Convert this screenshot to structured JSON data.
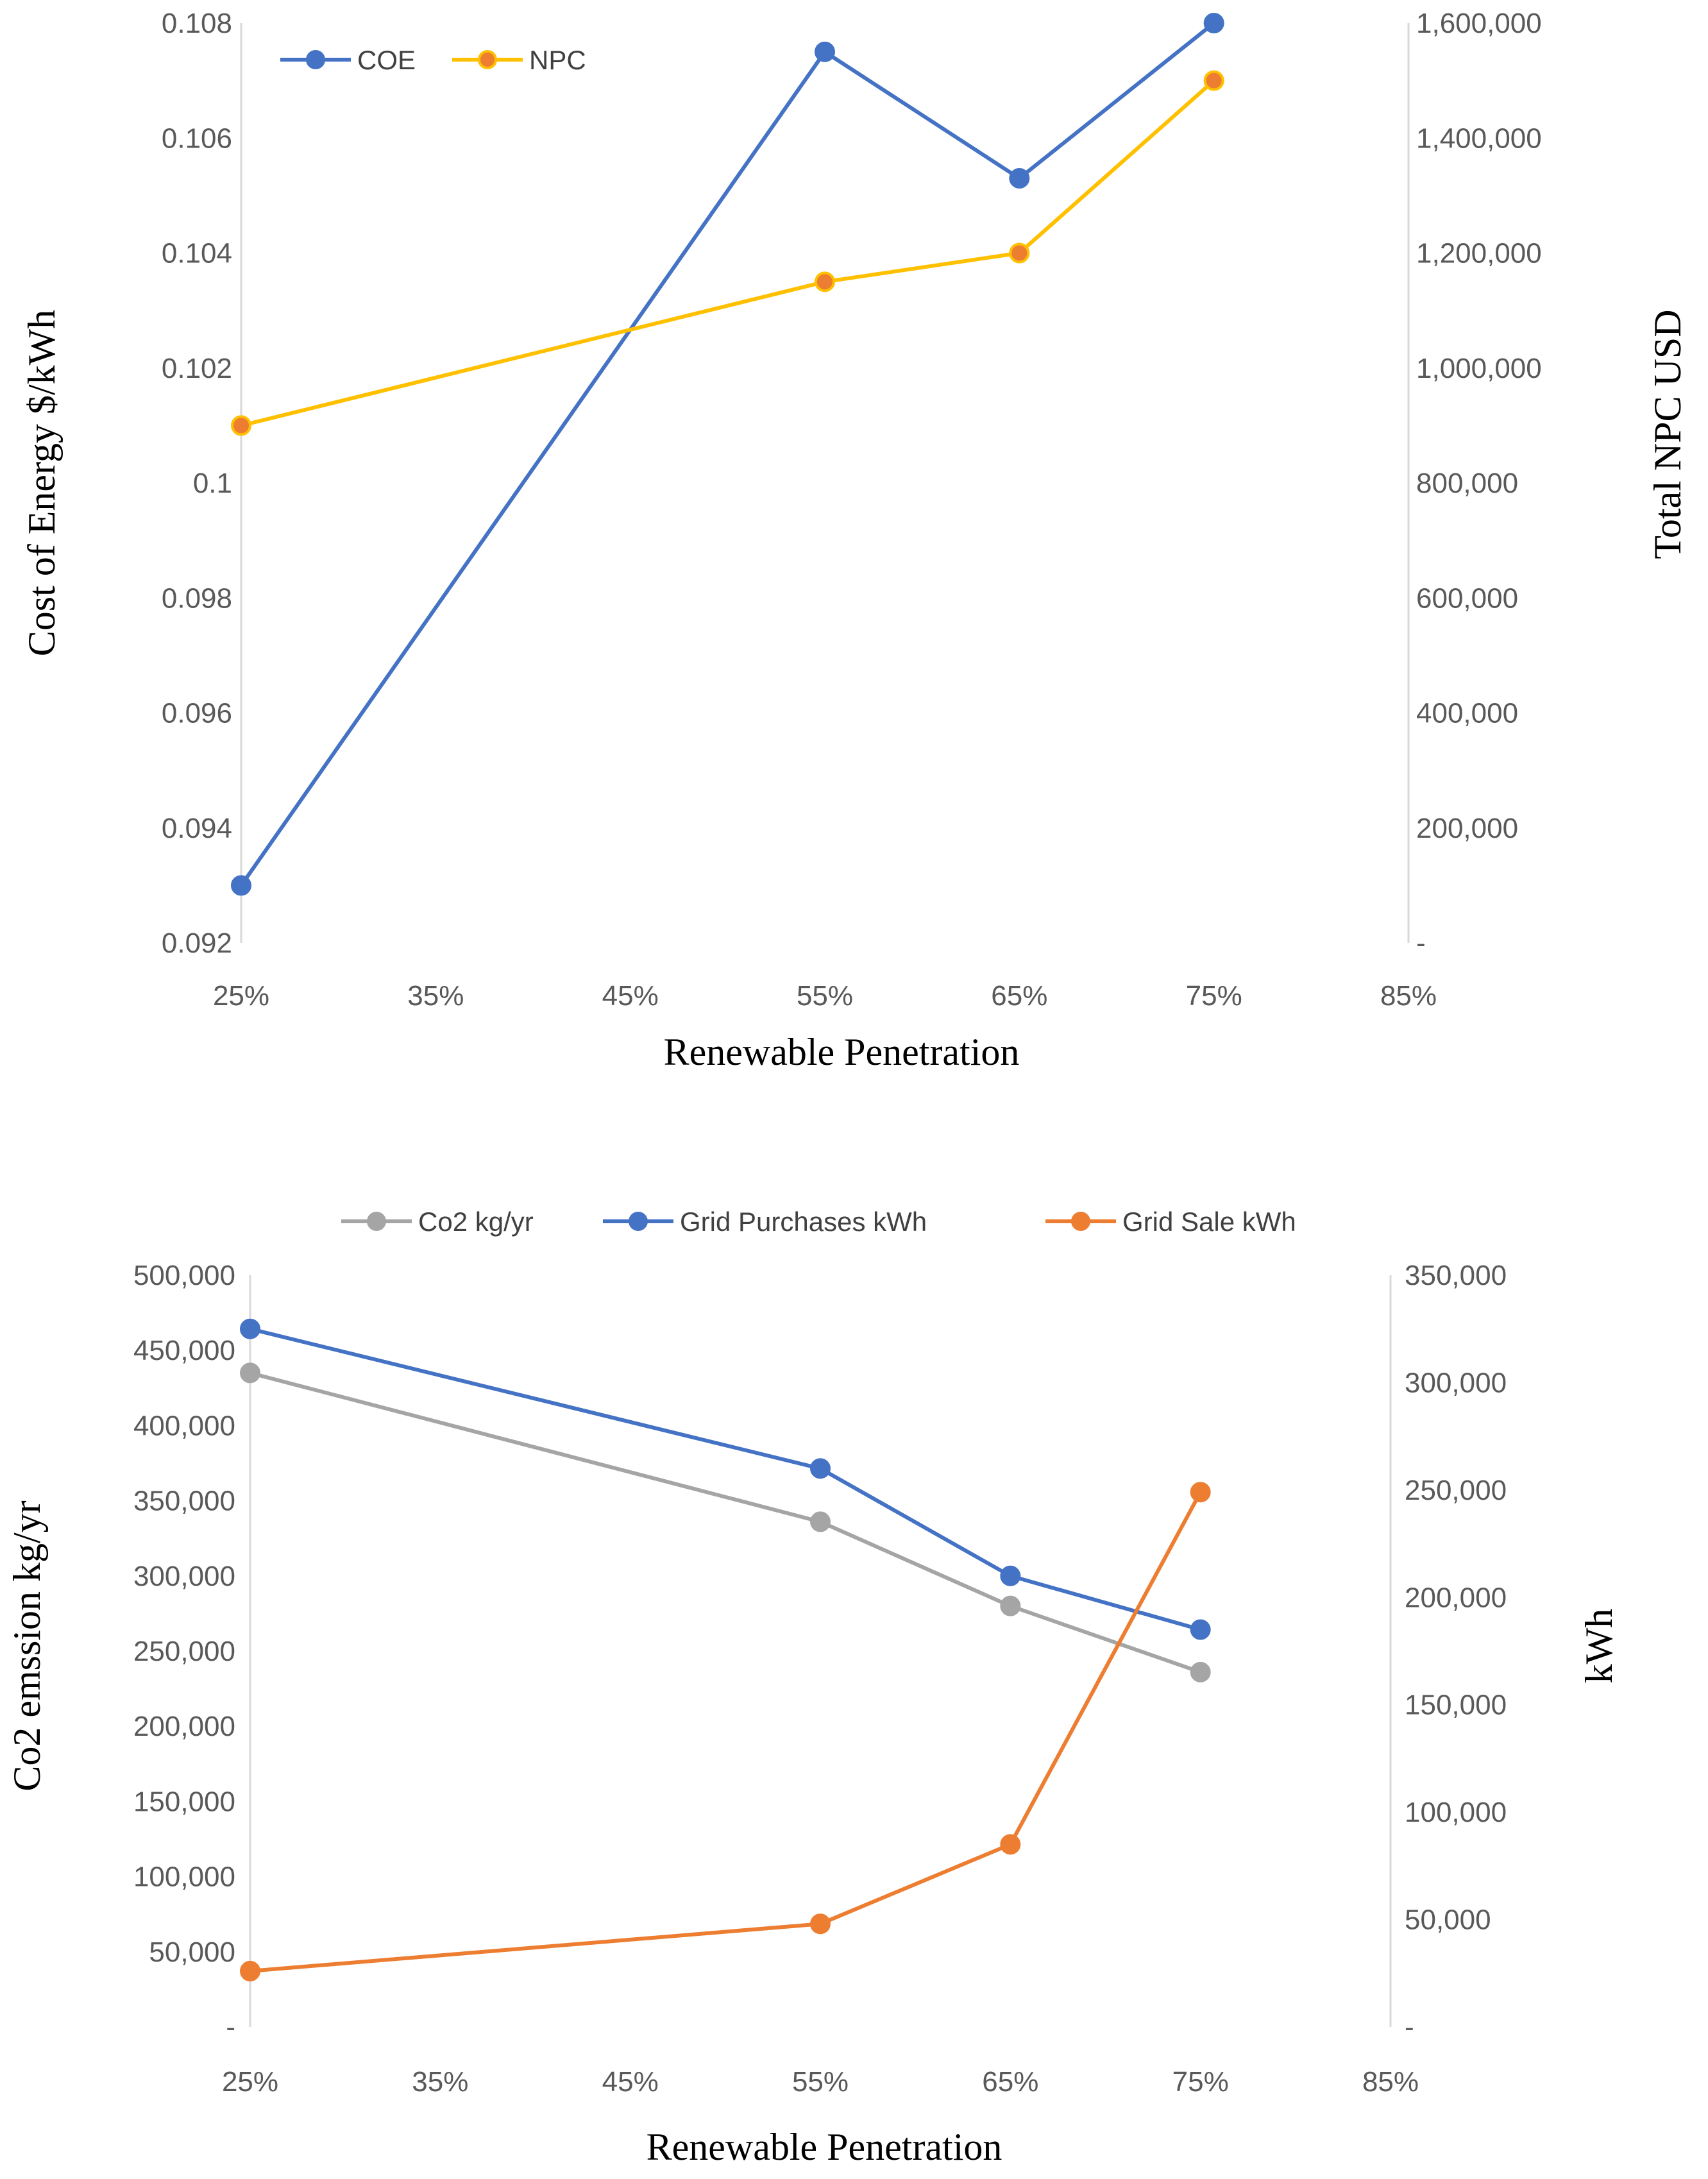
{
  "chart_data": [
    {
      "type": "line",
      "title": "",
      "xlabel": "Renewable Penetration",
      "ylabel": "Cost of Energy $/kWh",
      "y2label": "Total NPC USD",
      "xlim": [
        25,
        85
      ],
      "ylim": [
        0.092,
        0.108
      ],
      "y2lim": [
        0,
        1600000
      ],
      "x_ticks": [
        "25%",
        "35%",
        "45%",
        "55%",
        "65%",
        "75%",
        "85%"
      ],
      "y_ticks": [
        "0.108",
        "0.106",
        "0.104",
        "0.102",
        "0.1",
        "0.098",
        "0.096",
        "0.094",
        "0.092"
      ],
      "y2_ticks": [
        "1,600,000",
        "1,400,000",
        "1,200,000",
        "1,000,000",
        "800,000",
        "600,000",
        "400,000",
        "200,000",
        "-"
      ],
      "legend_position": "top-left",
      "series": [
        {
          "name": "COE",
          "axis": "left",
          "color": "#4472c4",
          "marker_color": "#4472c4",
          "x": [
            25,
            55,
            65,
            75
          ],
          "values": [
            0.093,
            0.1075,
            0.1053,
            0.108
          ]
        },
        {
          "name": "NPC",
          "axis": "right",
          "color": "#ffc000",
          "marker_color": "#ed7d31",
          "x": [
            25,
            55,
            65,
            75
          ],
          "values": [
            900000,
            1150000,
            1200000,
            1500000
          ]
        }
      ]
    },
    {
      "type": "line",
      "title": "",
      "xlabel": "Renewable Penetration",
      "ylabel": "Co2 emssion kg/yr",
      "y2label": "kWh",
      "xlim": [
        25,
        85
      ],
      "ylim": [
        0,
        500000
      ],
      "y2lim": [
        0,
        350000
      ],
      "x_ticks": [
        "25%",
        "35%",
        "45%",
        "55%",
        "65%",
        "75%",
        "85%"
      ],
      "y_ticks": [
        "500,000",
        "450,000",
        "400,000",
        "350,000",
        "300,000",
        "250,000",
        "200,000",
        "150,000",
        "100,000",
        "50,000",
        "-"
      ],
      "y2_ticks": [
        "350,000",
        "300,000",
        "250,000",
        "200,000",
        "150,000",
        "100,000",
        "50,000",
        "-"
      ],
      "legend_position": "top",
      "series": [
        {
          "name": "Co2 kg/yr",
          "axis": "left",
          "color": "#a5a5a5",
          "marker_color": "#a5a5a5",
          "x": [
            25,
            55,
            65,
            75
          ],
          "values": [
            435000,
            336000,
            280000,
            236000
          ]
        },
        {
          "name": "Grid Purchases kWh",
          "axis": "right",
          "color": "#4472c4",
          "marker_color": "#4472c4",
          "x": [
            25,
            55,
            65,
            75
          ],
          "values": [
            325000,
            260000,
            210000,
            185000
          ]
        },
        {
          "name": "Grid Sale kWh",
          "axis": "right",
          "color": "#ed7d31",
          "marker_color": "#ed7d31",
          "x": [
            25,
            55,
            65,
            75
          ],
          "values": [
            26000,
            48000,
            85000,
            249000
          ]
        }
      ]
    }
  ]
}
